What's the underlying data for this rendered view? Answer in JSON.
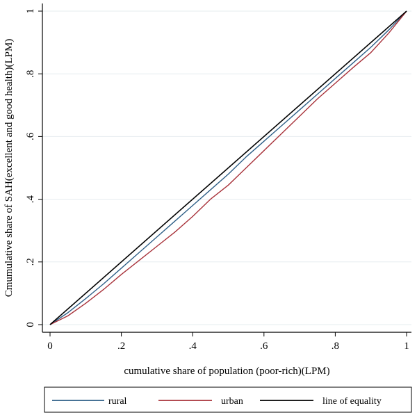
{
  "chart_data": {
    "type": "line",
    "title": "",
    "xlabel": "cumulative share of population (poor-rich)(LPM)",
    "ylabel": "Cmumulative share of SAH(excellent and good health)(LPM)",
    "xlim": [
      0,
      1
    ],
    "ylim": [
      0,
      1
    ],
    "x_ticks": [
      0,
      0.2,
      0.4,
      0.6,
      0.8,
      1
    ],
    "x_tick_labels": [
      "0",
      ".2",
      ".4",
      ".6",
      ".8",
      "1"
    ],
    "y_ticks": [
      0,
      0.2,
      0.4,
      0.6,
      0.8,
      1
    ],
    "y_tick_labels": [
      "0",
      ".2",
      ".4",
      ".6",
      ".8",
      "1"
    ],
    "grid": "horizontal",
    "legend_position": "bottom",
    "series": [
      {
        "name": "rural",
        "color": "#2e5f87",
        "x": [
          0,
          0.05,
          0.1,
          0.15,
          0.2,
          0.25,
          0.3,
          0.35,
          0.4,
          0.45,
          0.5,
          0.55,
          0.6,
          0.65,
          0.7,
          0.75,
          0.8,
          0.85,
          0.9,
          0.95,
          1
        ],
        "y": [
          0,
          0.038,
          0.083,
          0.13,
          0.18,
          0.23,
          0.28,
          0.33,
          0.38,
          0.43,
          0.48,
          0.535,
          0.585,
          0.635,
          0.685,
          0.735,
          0.785,
          0.835,
          0.885,
          0.94,
          1
        ]
      },
      {
        "name": "urban",
        "color": "#a8323a",
        "x": [
          0,
          0.05,
          0.1,
          0.15,
          0.2,
          0.25,
          0.3,
          0.35,
          0.4,
          0.45,
          0.5,
          0.55,
          0.6,
          0.65,
          0.7,
          0.75,
          0.8,
          0.85,
          0.9,
          0.95,
          1
        ],
        "y": [
          0,
          0.028,
          0.068,
          0.112,
          0.16,
          0.205,
          0.25,
          0.295,
          0.345,
          0.4,
          0.445,
          0.5,
          0.555,
          0.61,
          0.665,
          0.72,
          0.77,
          0.82,
          0.868,
          0.93,
          1
        ]
      },
      {
        "name": "line of equality",
        "color": "#000000",
        "x": [
          0,
          1
        ],
        "y": [
          0,
          1
        ]
      }
    ]
  }
}
